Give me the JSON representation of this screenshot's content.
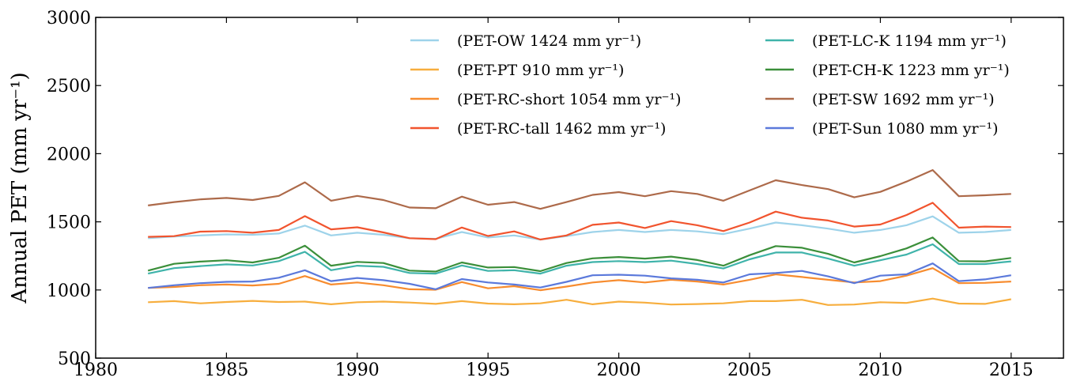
{
  "chart_data": {
    "type": "line",
    "title": "",
    "xlabel": "",
    "ylabel": "Annual PET (mm yr⁻¹)",
    "xlim": [
      1980,
      2017
    ],
    "ylim": [
      500,
      3000
    ],
    "xticks": [
      1980,
      1985,
      1990,
      1995,
      2000,
      2005,
      2010,
      2015
    ],
    "yticks": [
      500,
      1000,
      1500,
      2000,
      2500,
      3000
    ],
    "grid": false,
    "legend_position": "top-right",
    "x": [
      1982,
      1983,
      1984,
      1985,
      1986,
      1987,
      1988,
      1989,
      1990,
      1991,
      1992,
      1993,
      1994,
      1995,
      1996,
      1997,
      1998,
      1999,
      2000,
      2001,
      2002,
      2003,
      2004,
      2005,
      2006,
      2007,
      2008,
      2009,
      2010,
      2011,
      2012,
      2013,
      2014,
      2015
    ],
    "series": [
      {
        "name": "(PET-OW 1424 mm yr⁻¹)",
        "color": "#9ed3ea",
        "values": [
          1380,
          1392,
          1400,
          1408,
          1405,
          1414,
          1472,
          1400,
          1420,
          1405,
          1380,
          1375,
          1425,
          1385,
          1400,
          1370,
          1395,
          1425,
          1440,
          1425,
          1440,
          1430,
          1410,
          1450,
          1495,
          1475,
          1450,
          1420,
          1440,
          1475,
          1540,
          1420,
          1425,
          1440
        ]
      },
      {
        "name": "(PET-PT 910 mm yr⁻¹)",
        "color": "#f7ae3e",
        "values": [
          910,
          918,
          902,
          912,
          920,
          912,
          915,
          895,
          910,
          915,
          908,
          898,
          918,
          900,
          895,
          902,
          928,
          895,
          915,
          907,
          893,
          897,
          902,
          918,
          918,
          928,
          890,
          893,
          910,
          905,
          937,
          900,
          898,
          932
        ]
      },
      {
        "name": "(PET-RC-short 1054 mm yr⁻¹)",
        "color": "#f78c2f",
        "values": [
          1015,
          1022,
          1035,
          1040,
          1033,
          1045,
          1102,
          1040,
          1055,
          1035,
          1005,
          1002,
          1058,
          1012,
          1028,
          998,
          1025,
          1055,
          1072,
          1055,
          1075,
          1062,
          1040,
          1075,
          1115,
          1095,
          1075,
          1055,
          1065,
          1105,
          1160,
          1050,
          1052,
          1062
        ]
      },
      {
        "name": "(PET-RC-tall 1462 mm yr⁻¹)",
        "color": "#f1542e",
        "values": [
          1390,
          1395,
          1428,
          1432,
          1420,
          1440,
          1542,
          1445,
          1460,
          1422,
          1380,
          1373,
          1458,
          1396,
          1430,
          1370,
          1400,
          1478,
          1495,
          1455,
          1505,
          1475,
          1432,
          1495,
          1575,
          1530,
          1510,
          1465,
          1480,
          1550,
          1640,
          1457,
          1465,
          1462
        ]
      },
      {
        "name": "(PET-LC-K 1194 mm yr⁻¹)",
        "color": "#3fb3aa",
        "values": [
          1120,
          1160,
          1175,
          1188,
          1180,
          1212,
          1280,
          1145,
          1178,
          1170,
          1125,
          1120,
          1180,
          1140,
          1145,
          1120,
          1178,
          1205,
          1212,
          1205,
          1215,
          1190,
          1158,
          1225,
          1275,
          1275,
          1230,
          1178,
          1218,
          1260,
          1335,
          1190,
          1190,
          1210
        ]
      },
      {
        "name": "(PET-CH-K 1223 mm yr⁻¹)",
        "color": "#3b8f3a",
        "values": [
          1142,
          1192,
          1208,
          1218,
          1202,
          1236,
          1325,
          1178,
          1206,
          1198,
          1142,
          1135,
          1202,
          1165,
          1168,
          1138,
          1198,
          1232,
          1242,
          1230,
          1245,
          1220,
          1178,
          1255,
          1322,
          1310,
          1265,
          1202,
          1248,
          1305,
          1385,
          1212,
          1210,
          1235
        ]
      },
      {
        "name": "(PET-SW 1692 mm yr⁻¹)",
        "color": "#ad6a4a",
        "values": [
          1620,
          1645,
          1665,
          1675,
          1660,
          1690,
          1790,
          1655,
          1690,
          1660,
          1605,
          1600,
          1685,
          1625,
          1645,
          1595,
          1645,
          1698,
          1718,
          1688,
          1725,
          1705,
          1655,
          1730,
          1805,
          1770,
          1740,
          1680,
          1720,
          1795,
          1880,
          1688,
          1695,
          1705
        ]
      },
      {
        "name": "(PET-Sun 1080 mm yr⁻¹)",
        "color": "#5b79db",
        "values": [
          1015,
          1035,
          1050,
          1060,
          1062,
          1090,
          1145,
          1065,
          1088,
          1072,
          1045,
          1005,
          1080,
          1055,
          1040,
          1018,
          1060,
          1108,
          1112,
          1105,
          1085,
          1075,
          1055,
          1115,
          1125,
          1140,
          1100,
          1050,
          1105,
          1115,
          1195,
          1065,
          1078,
          1108
        ]
      }
    ]
  }
}
